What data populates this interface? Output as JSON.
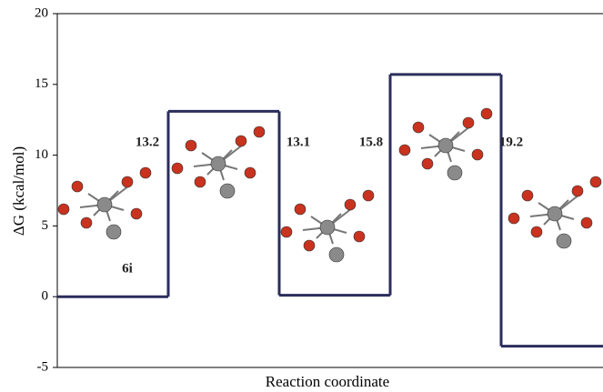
{
  "chart_data": {
    "type": "step",
    "y_label": "ΔG (kcal/mol)",
    "x_label": "Reaction coordinate",
    "categories": [
      null,
      null,
      null,
      null,
      null
    ],
    "values": [
      0,
      13.1,
      0.1,
      15.7,
      -3.5
    ],
    "color": "#2b2d5c",
    "ylim": [
      -5,
      20
    ],
    "yticks": [
      -5,
      0,
      5,
      10,
      15,
      20
    ],
    "annotations": [
      "6i",
      "13.2",
      "13.1",
      "15.8",
      "19.2"
    ]
  }
}
